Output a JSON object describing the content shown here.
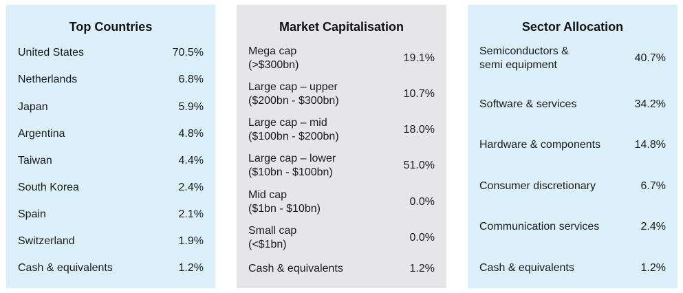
{
  "top_countries": {
    "title": "Top Countries",
    "rows": [
      {
        "label": "United States",
        "value": "70.5%"
      },
      {
        "label": "Netherlands",
        "value": "6.8%"
      },
      {
        "label": "Japan",
        "value": "5.9%"
      },
      {
        "label": "Argentina",
        "value": "4.8%"
      },
      {
        "label": "Taiwan",
        "value": "4.4%"
      },
      {
        "label": "South Korea",
        "value": "2.4%"
      },
      {
        "label": "Spain",
        "value": "2.1%"
      },
      {
        "label": "Switzerland",
        "value": "1.9%"
      },
      {
        "label": "Cash & equivalents",
        "value": "1.2%"
      }
    ]
  },
  "market_cap": {
    "title": "Market Capitalisation",
    "rows": [
      {
        "label": "Mega cap\n(>$300bn)",
        "value": "19.1%"
      },
      {
        "label": "Large cap – upper\n($200bn - $300bn)",
        "value": "10.7%"
      },
      {
        "label": "Large cap – mid\n($100bn - $200bn)",
        "value": "18.0%"
      },
      {
        "label": "Large cap – lower\n($10bn - $100bn)",
        "value": "51.0%"
      },
      {
        "label": "Mid cap\n($1bn - $10bn)",
        "value": "0.0%"
      },
      {
        "label": "Small cap\n(<$1bn)",
        "value": "0.0%"
      },
      {
        "label": "Cash & equivalents",
        "value": "1.2%"
      }
    ]
  },
  "sector": {
    "title": "Sector Allocation",
    "rows": [
      {
        "label": "Semiconductors &\nsemi equipment",
        "value": "40.7%"
      },
      {
        "label": "Software & services",
        "value": "34.2%"
      },
      {
        "label": "Hardware & components",
        "value": "14.8%"
      },
      {
        "label": "Consumer discretionary",
        "value": "6.7%"
      },
      {
        "label": "Communication services",
        "value": "2.4%"
      },
      {
        "label": "Cash & equivalents",
        "value": "1.2%"
      }
    ]
  }
}
